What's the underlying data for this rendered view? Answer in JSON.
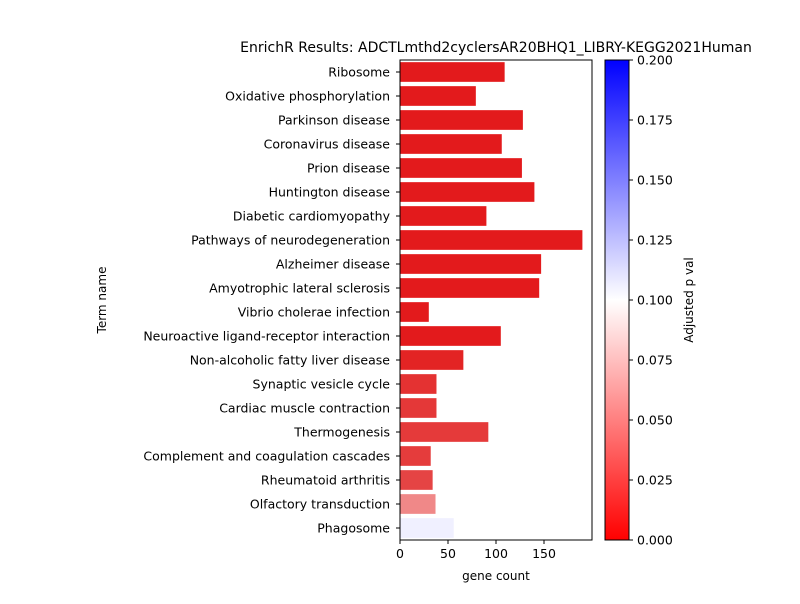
{
  "chart_data": {
    "type": "bar",
    "orientation": "horizontal",
    "title": "EnrichR Results: ADCTLmthd2cyclersAR20BHQ1_LIBRY-KEGG2021Human",
    "xlabel": "gene count",
    "ylabel": "Term name",
    "xlim": [
      0,
      200
    ],
    "xticks": [
      "0",
      "50",
      "100",
      "150"
    ],
    "categories": [
      "Ribosome",
      "Oxidative phosphorylation",
      "Parkinson disease",
      "Coronavirus disease",
      "Prion disease",
      "Huntington disease",
      "Diabetic cardiomyopathy",
      "Pathways of neurodegeneration",
      "Alzheimer disease",
      "Amyotrophic lateral sclerosis",
      "Vibrio cholerae infection",
      "Neuroactive ligand-receptor interaction",
      "Non-alcoholic fatty liver disease",
      "Synaptic vesicle cycle",
      "Cardiac muscle contraction",
      "Thermogenesis",
      "Complement and coagulation cascades",
      "Rheumatoid arthritis",
      "Olfactory transduction",
      "Phagosome"
    ],
    "values": [
      109,
      79,
      128,
      106,
      127,
      140,
      90,
      190,
      147,
      145,
      30,
      105,
      66,
      38,
      38,
      92,
      32,
      34,
      37,
      56
    ],
    "bar_colors": [
      "#e31a1c",
      "#e31a1c",
      "#e31a1c",
      "#e31a1c",
      "#e31a1c",
      "#e31a1c",
      "#e31a1c",
      "#e31a1c",
      "#e31a1c",
      "#e31a1c",
      "#e31a1c",
      "#e31a1c",
      "#e32424",
      "#e43232",
      "#e43838",
      "#e53a3a",
      "#e53c3c",
      "#e54444",
      "#f08888",
      "#f0f0ff"
    ],
    "colorbar": {
      "label": "Adjusted p val",
      "range": [
        0,
        0.2
      ],
      "ticks": [
        "0.000",
        "0.025",
        "0.050",
        "0.075",
        "0.100",
        "0.125",
        "0.150",
        "0.175",
        "0.200"
      ],
      "colors": [
        "#ff0000",
        "#ffffff",
        "#0000ff"
      ]
    },
    "grid": false
  }
}
